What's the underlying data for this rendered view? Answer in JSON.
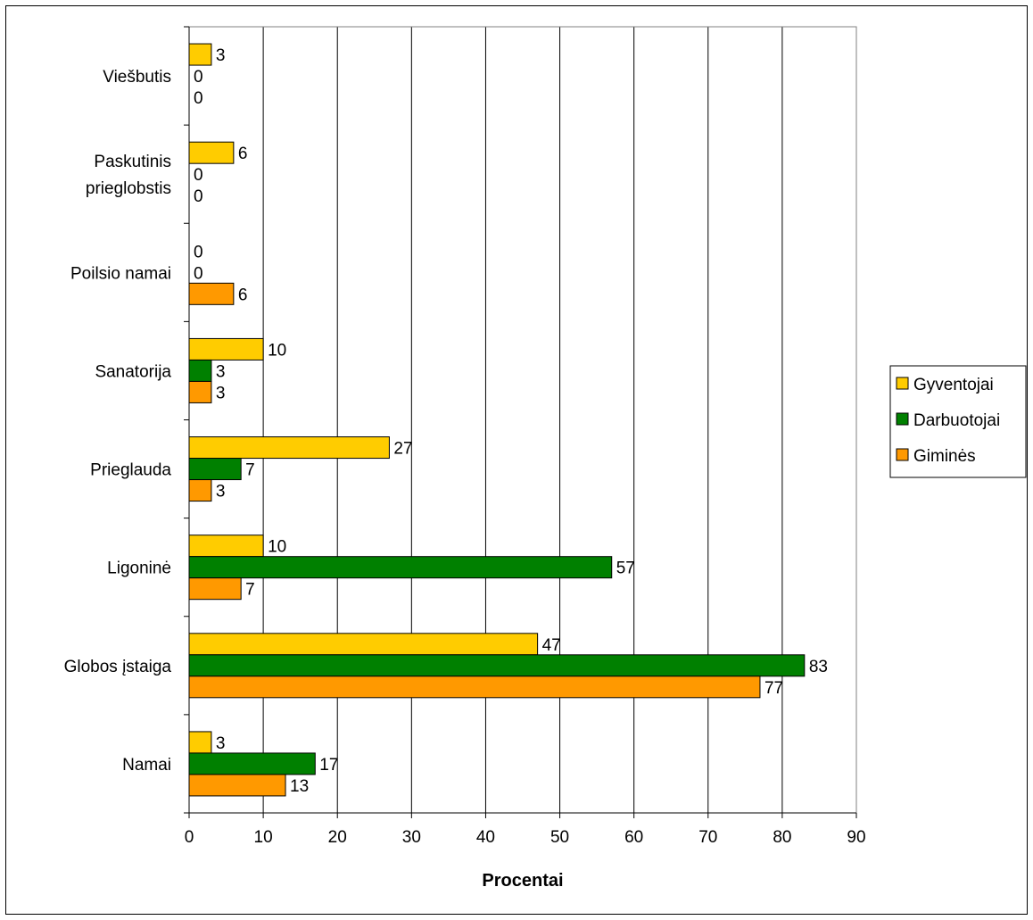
{
  "chart_data": {
    "type": "bar",
    "orientation": "horizontal",
    "categories": [
      "Namai",
      "Globos įstaiga",
      "Ligoninė",
      "Prieglauda",
      "Sanatorija",
      "Poilsio namai",
      "Paskutinis prieglobstis",
      "Viešbutis"
    ],
    "category_lines": [
      [
        "Namai"
      ],
      [
        "Globos įstaiga"
      ],
      [
        "Ligoninė"
      ],
      [
        "Prieglauda"
      ],
      [
        "Sanatorija"
      ],
      [
        "Poilsio namai"
      ],
      [
        "Paskutinis",
        "prieglobstis"
      ],
      [
        "Viešbutis"
      ]
    ],
    "series": [
      {
        "name": "Gyventojai",
        "color": "#FFCC00",
        "values": [
          3,
          47,
          10,
          27,
          10,
          0,
          6,
          3
        ]
      },
      {
        "name": "Darbuotojai",
        "color": "#008000",
        "values": [
          17,
          83,
          57,
          7,
          3,
          0,
          0,
          0
        ]
      },
      {
        "name": "Giminės",
        "color": "#FF9900",
        "values": [
          13,
          77,
          7,
          3,
          3,
          6,
          0,
          0
        ]
      }
    ],
    "xlabel": "Procentai",
    "ylabel": "",
    "title": "",
    "xlim": [
      0,
      90
    ],
    "xticks": [
      0,
      10,
      20,
      30,
      40,
      50,
      60,
      70,
      80,
      90
    ],
    "grid": "vertical",
    "legend_position": "right",
    "data_labels": true
  }
}
